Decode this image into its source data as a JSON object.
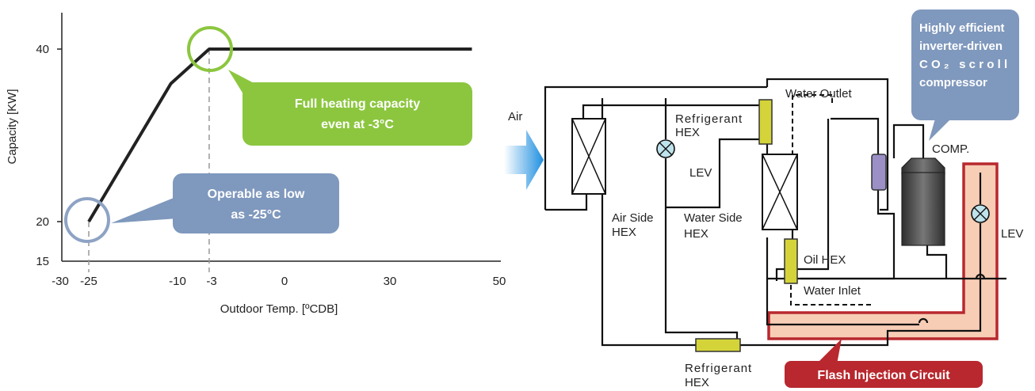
{
  "chart": {
    "ylabel": "Capacity [KW]",
    "xlabel": "Outdoor Temp. [ºCDB]",
    "y_ticks": [
      "40",
      "20",
      "15"
    ],
    "x_ticks": [
      "-30",
      "-25",
      "-10",
      "-3",
      "0",
      "30",
      "50"
    ],
    "callout_green_line1": "Full heating capacity",
    "callout_green_line2": "even at -3°C",
    "callout_blue_line1": "Operable as low",
    "callout_blue_line2": "as -25°C",
    "colors": {
      "green": "#8cc63f",
      "blue": "#7f98bd",
      "line": "#222222"
    }
  },
  "chart_data": {
    "type": "line",
    "series": [
      {
        "x": [
          -25,
          -10,
          -3,
          45
        ],
        "y": [
          20,
          36,
          40,
          40
        ]
      }
    ],
    "xlim": [
      -30,
      50
    ],
    "ylim": [
      15,
      44
    ],
    "grid": false,
    "reference_lines_x": [
      -25,
      -3
    ]
  },
  "diagram": {
    "air_label": "Air",
    "water_outlet": "Water Outlet",
    "water_inlet": "Water Inlet",
    "refrigerant_hex_top_l1": "Refrigerant",
    "refrigerant_hex_top_l2": "HEX",
    "refrigerant_hex_bottom_l1": "Refrigerant",
    "refrigerant_hex_bottom_l2": "HEX",
    "lev_left": "LEV",
    "lev_right": "LEV",
    "air_side_l1": "Air Side",
    "air_side_l2": "HEX",
    "water_side_l1": "Water Side",
    "water_side_l2": "HEX",
    "oil_hex": "Oil HEX",
    "comp": "COMP.",
    "compressor_callout_l1": "Highly efficient",
    "compressor_callout_l2": "inverter-driven",
    "compressor_callout_l3": "CO₂ scroll",
    "compressor_callout_l4": "compressor",
    "flash_injection": "Flash Injection Circuit",
    "colors": {
      "hex_yellow": "#d4d43a",
      "flash_red": "#b8282e",
      "flash_fill": "#f7cdb5",
      "callout_blue": "#7f98bd",
      "compressor": "#555555",
      "oil_sep": "#9b8fc6",
      "lev_fill": "#bfe3ec"
    }
  }
}
